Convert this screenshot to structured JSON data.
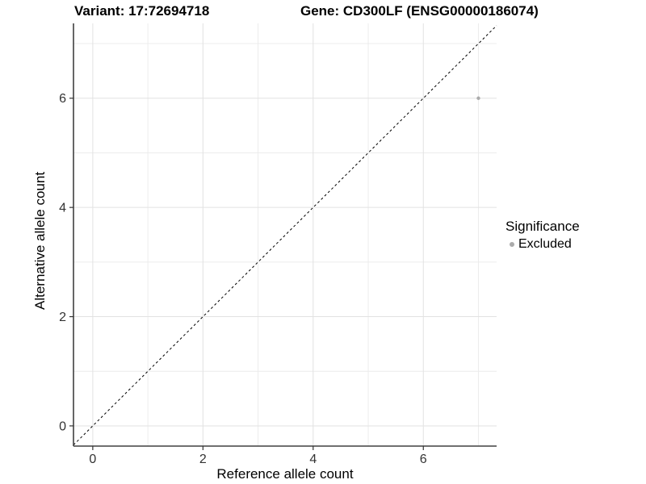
{
  "header": {
    "variant_title": "Variant: 17:72694718",
    "gene_title": "Gene: CD300LF (ENSG00000186074)"
  },
  "chart_data": {
    "type": "scatter",
    "xlabel": "Reference allele count",
    "ylabel": "Alternative allele count",
    "points": [
      {
        "x": 7,
        "y": 6,
        "series": "Excluded"
      }
    ],
    "x_ticks": [
      0,
      2,
      4,
      6
    ],
    "y_ticks": [
      0,
      2,
      4,
      6
    ],
    "x_minor_gridlines": [
      1,
      3,
      5,
      7
    ],
    "y_minor_gridlines": [
      1,
      3,
      5,
      7
    ],
    "xlim": [
      -0.35,
      7.33
    ],
    "ylim": [
      -0.37,
      7.37
    ],
    "grid": true,
    "reference_line": {
      "slope": 1,
      "intercept": 0,
      "style": "dashed",
      "color": "#000000"
    },
    "legend": {
      "title": "Significance",
      "position": "right",
      "entries": [
        {
          "label": "Excluded",
          "color": "#ababab"
        }
      ]
    },
    "point_color": "#ababab",
    "point_radius": 2.2,
    "colors": {
      "background": "#ffffff",
      "grid_major": "#e2e2e2",
      "grid_minor": "#ececec",
      "axis_line": "#404040",
      "tick_mark": "#333333",
      "tick_label": "#333333",
      "text": "#000000"
    }
  }
}
